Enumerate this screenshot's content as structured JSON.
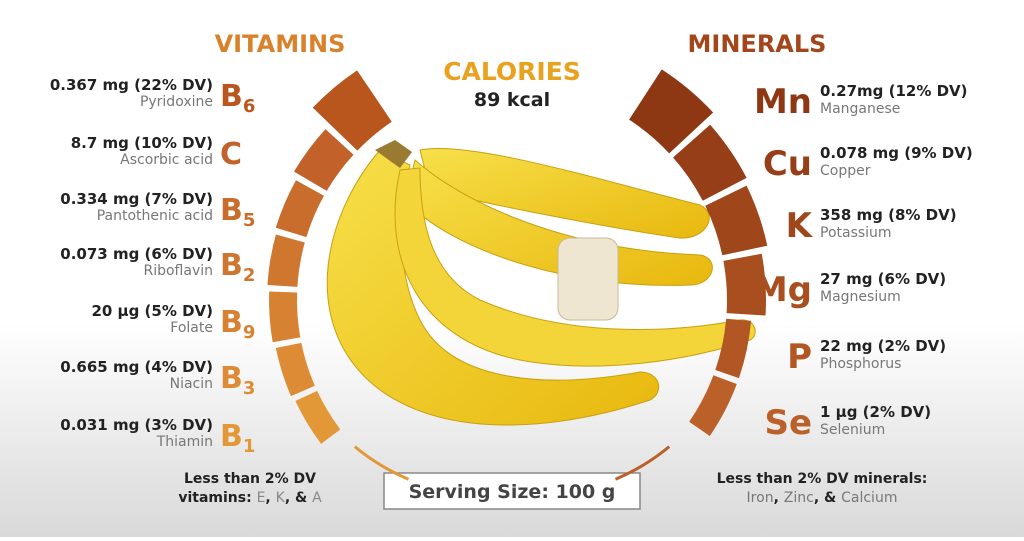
{
  "header": {
    "vitamins_title": "VITAMINS",
    "minerals_title": "MINERALS",
    "calories_title": "CALORIES",
    "calories_value": "89 kcal"
  },
  "vitamins": [
    {
      "amount": "0.367 mg (22% DV)",
      "name": "Pyridoxine",
      "symbol": "B",
      "sub": "6",
      "dv": 22,
      "color": "#b9561e"
    },
    {
      "amount": "8.7 mg (10% DV)",
      "name": "Ascorbic acid",
      "symbol": "C",
      "sub": null,
      "dv": 10,
      "color": "#c2622a"
    },
    {
      "amount": "0.334 mg (7% DV)",
      "name": "Pantothenic acid",
      "symbol": "B",
      "sub": "5",
      "dv": 7,
      "color": "#c96d2c"
    },
    {
      "amount": "0.073 mg (6% DV)",
      "name": "Riboflavin",
      "symbol": "B",
      "sub": "2",
      "dv": 6,
      "color": "#d0772f"
    },
    {
      "amount": "20 µg (5% DV)",
      "name": "Folate",
      "symbol": "B",
      "sub": "9",
      "dv": 5,
      "color": "#d78232"
    },
    {
      "amount": "0.665 mg (4% DV)",
      "name": "Niacin",
      "symbol": "B",
      "sub": "3",
      "dv": 4,
      "color": "#dd8c35"
    },
    {
      "amount": "0.031 mg (3% DV)",
      "name": "Thiamin",
      "symbol": "B",
      "sub": "1",
      "dv": 3,
      "color": "#e39838"
    }
  ],
  "minerals": [
    {
      "amount": "0.27mg (12% DV)",
      "name": "Manganese",
      "symbol": "Mn",
      "dv": 12,
      "color": "#8e3813"
    },
    {
      "amount": "0.078 mg (9% DV)",
      "name": "Copper",
      "symbol": "Cu",
      "dv": 9,
      "color": "#963e17"
    },
    {
      "amount": "358 mg (8% DV)",
      "name": "Potassium",
      "symbol": "K",
      "dv": 8,
      "color": "#9f461b"
    },
    {
      "amount": "27 mg (6% DV)",
      "name": "Magnesium",
      "symbol": "Mg",
      "dv": 6,
      "color": "#a84e1f"
    },
    {
      "amount": "22 mg (2% DV)",
      "name": "Phosphorus",
      "symbol": "P",
      "dv": 2,
      "color": "#b25724"
    },
    {
      "amount": "1 µg (2% DV)",
      "name": "Selenium",
      "symbol": "Se",
      "dv": 2,
      "color": "#bb6029"
    }
  ],
  "vitamins_note": {
    "line1": "Less than 2% DV",
    "line2": [
      "vitamins: ",
      "E",
      ", ",
      "K",
      ", & ",
      "A"
    ]
  },
  "minerals_note": {
    "line1": "Less than 2% DV minerals:",
    "line2": [
      "Iron",
      ", ",
      "Zinc",
      ", & ",
      "Calcium"
    ]
  },
  "serving": "Serving Size: 100 g"
}
